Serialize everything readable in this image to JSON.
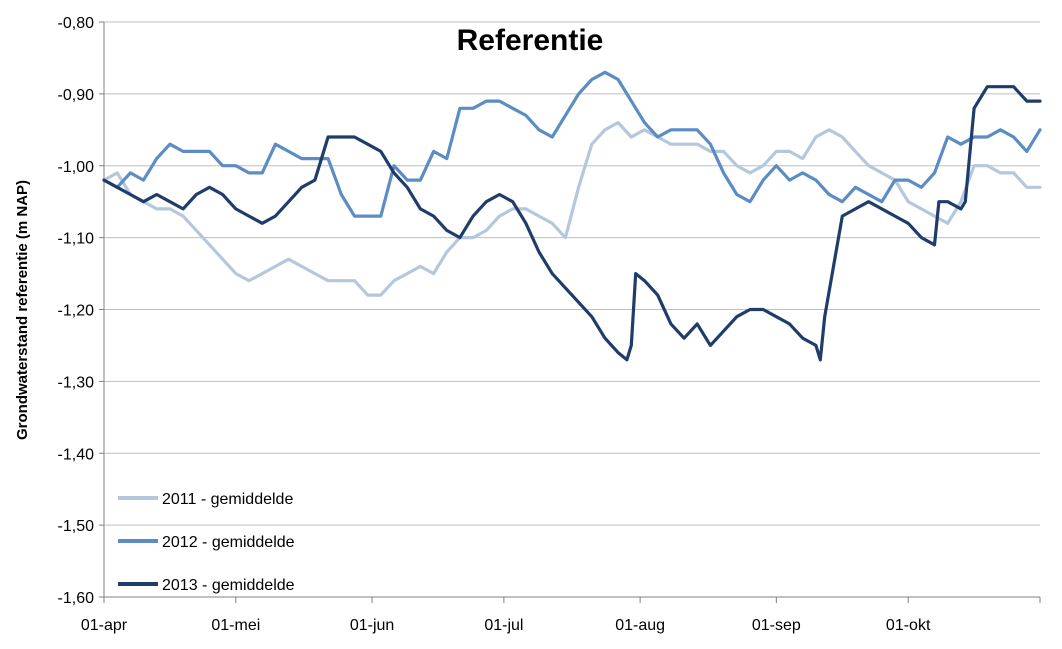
{
  "chart_data": {
    "type": "line",
    "title": "Referentie",
    "ylabel": "Grondwaterstand referentie (m NAP)",
    "xlabel": "",
    "ylim": [
      -1.6,
      -0.8
    ],
    "yticks": [
      "-0,80",
      "-0,90",
      "-1,00",
      "-1,10",
      "-1,20",
      "-1,30",
      "-1,40",
      "-1,50",
      "-1,60"
    ],
    "xlim": [
      0,
      213
    ],
    "xticks": [
      {
        "label": "01-apr",
        "day": 0
      },
      {
        "label": "01-mei",
        "day": 30
      },
      {
        "label": "01-jun",
        "day": 61
      },
      {
        "label": "01-jul",
        "day": 91
      },
      {
        "label": "01-aug",
        "day": 122
      },
      {
        "label": "01-sep",
        "day": 153
      },
      {
        "label": "01-okt",
        "day": 183
      }
    ],
    "grid": true,
    "legend_position": "bottom-left",
    "series": [
      {
        "name": "2011 - gemiddelde",
        "color": "#b4c7dc",
        "points": [
          [
            0,
            -1.02
          ],
          [
            3,
            -1.01
          ],
          [
            6,
            -1.04
          ],
          [
            9,
            -1.05
          ],
          [
            12,
            -1.06
          ],
          [
            15,
            -1.06
          ],
          [
            18,
            -1.07
          ],
          [
            21,
            -1.09
          ],
          [
            24,
            -1.11
          ],
          [
            27,
            -1.13
          ],
          [
            30,
            -1.15
          ],
          [
            33,
            -1.16
          ],
          [
            36,
            -1.15
          ],
          [
            39,
            -1.14
          ],
          [
            42,
            -1.13
          ],
          [
            45,
            -1.14
          ],
          [
            48,
            -1.15
          ],
          [
            51,
            -1.16
          ],
          [
            54,
            -1.16
          ],
          [
            57,
            -1.16
          ],
          [
            60,
            -1.18
          ],
          [
            63,
            -1.18
          ],
          [
            66,
            -1.16
          ],
          [
            69,
            -1.15
          ],
          [
            72,
            -1.14
          ],
          [
            75,
            -1.15
          ],
          [
            78,
            -1.12
          ],
          [
            81,
            -1.1
          ],
          [
            84,
            -1.1
          ],
          [
            87,
            -1.09
          ],
          [
            90,
            -1.07
          ],
          [
            93,
            -1.06
          ],
          [
            96,
            -1.06
          ],
          [
            99,
            -1.07
          ],
          [
            102,
            -1.08
          ],
          [
            105,
            -1.1
          ],
          [
            108,
            -1.03
          ],
          [
            111,
            -0.97
          ],
          [
            114,
            -0.95
          ],
          [
            117,
            -0.94
          ],
          [
            120,
            -0.96
          ],
          [
            123,
            -0.95
          ],
          [
            126,
            -0.96
          ],
          [
            129,
            -0.97
          ],
          [
            132,
            -0.97
          ],
          [
            135,
            -0.97
          ],
          [
            138,
            -0.98
          ],
          [
            141,
            -0.98
          ],
          [
            144,
            -1.0
          ],
          [
            147,
            -1.01
          ],
          [
            150,
            -1.0
          ],
          [
            153,
            -0.98
          ],
          [
            156,
            -0.98
          ],
          [
            159,
            -0.99
          ],
          [
            162,
            -0.96
          ],
          [
            165,
            -0.95
          ],
          [
            168,
            -0.96
          ],
          [
            171,
            -0.98
          ],
          [
            174,
            -1.0
          ],
          [
            177,
            -1.01
          ],
          [
            180,
            -1.02
          ],
          [
            183,
            -1.05
          ],
          [
            186,
            -1.06
          ],
          [
            189,
            -1.07
          ],
          [
            192,
            -1.08
          ],
          [
            195,
            -1.05
          ],
          [
            198,
            -1.0
          ],
          [
            201,
            -1.0
          ],
          [
            204,
            -1.01
          ],
          [
            207,
            -1.01
          ],
          [
            210,
            -1.03
          ],
          [
            213,
            -1.03
          ]
        ]
      },
      {
        "name": "2012 - gemiddelde",
        "color": "#5b8cc4",
        "points": [
          [
            0,
            -1.02
          ],
          [
            3,
            -1.03
          ],
          [
            6,
            -1.01
          ],
          [
            9,
            -1.02
          ],
          [
            12,
            -0.99
          ],
          [
            15,
            -0.97
          ],
          [
            18,
            -0.98
          ],
          [
            21,
            -0.98
          ],
          [
            24,
            -0.98
          ],
          [
            27,
            -1.0
          ],
          [
            30,
            -1.0
          ],
          [
            33,
            -1.01
          ],
          [
            36,
            -1.01
          ],
          [
            39,
            -0.97
          ],
          [
            42,
            -0.98
          ],
          [
            45,
            -0.99
          ],
          [
            48,
            -0.99
          ],
          [
            51,
            -0.99
          ],
          [
            54,
            -1.04
          ],
          [
            57,
            -1.07
          ],
          [
            60,
            -1.07
          ],
          [
            63,
            -1.07
          ],
          [
            66,
            -1.0
          ],
          [
            69,
            -1.02
          ],
          [
            72,
            -1.02
          ],
          [
            75,
            -0.98
          ],
          [
            78,
            -0.99
          ],
          [
            81,
            -0.92
          ],
          [
            84,
            -0.92
          ],
          [
            87,
            -0.91
          ],
          [
            90,
            -0.91
          ],
          [
            93,
            -0.92
          ],
          [
            96,
            -0.93
          ],
          [
            99,
            -0.95
          ],
          [
            102,
            -0.96
          ],
          [
            105,
            -0.93
          ],
          [
            108,
            -0.9
          ],
          [
            111,
            -0.88
          ],
          [
            114,
            -0.87
          ],
          [
            117,
            -0.88
          ],
          [
            120,
            -0.91
          ],
          [
            123,
            -0.94
          ],
          [
            126,
            -0.96
          ],
          [
            129,
            -0.95
          ],
          [
            132,
            -0.95
          ],
          [
            135,
            -0.95
          ],
          [
            138,
            -0.97
          ],
          [
            141,
            -1.01
          ],
          [
            144,
            -1.04
          ],
          [
            147,
            -1.05
          ],
          [
            150,
            -1.02
          ],
          [
            153,
            -1.0
          ],
          [
            156,
            -1.02
          ],
          [
            159,
            -1.01
          ],
          [
            162,
            -1.02
          ],
          [
            165,
            -1.04
          ],
          [
            168,
            -1.05
          ],
          [
            171,
            -1.03
          ],
          [
            174,
            -1.04
          ],
          [
            177,
            -1.05
          ],
          [
            180,
            -1.02
          ],
          [
            183,
            -1.02
          ],
          [
            186,
            -1.03
          ],
          [
            189,
            -1.01
          ],
          [
            192,
            -0.96
          ],
          [
            195,
            -0.97
          ],
          [
            198,
            -0.96
          ],
          [
            201,
            -0.96
          ],
          [
            204,
            -0.95
          ],
          [
            207,
            -0.96
          ],
          [
            210,
            -0.98
          ],
          [
            213,
            -0.95
          ]
        ]
      },
      {
        "name": "2013 - gemiddelde",
        "color": "#1f3d6b",
        "points": [
          [
            0,
            -1.02
          ],
          [
            3,
            -1.03
          ],
          [
            6,
            -1.04
          ],
          [
            9,
            -1.05
          ],
          [
            12,
            -1.04
          ],
          [
            15,
            -1.05
          ],
          [
            18,
            -1.06
          ],
          [
            21,
            -1.04
          ],
          [
            24,
            -1.03
          ],
          [
            27,
            -1.04
          ],
          [
            30,
            -1.06
          ],
          [
            33,
            -1.07
          ],
          [
            36,
            -1.08
          ],
          [
            39,
            -1.07
          ],
          [
            42,
            -1.05
          ],
          [
            45,
            -1.03
          ],
          [
            48,
            -1.02
          ],
          [
            51,
            -0.96
          ],
          [
            54,
            -0.96
          ],
          [
            57,
            -0.96
          ],
          [
            60,
            -0.97
          ],
          [
            63,
            -0.98
          ],
          [
            66,
            -1.01
          ],
          [
            69,
            -1.03
          ],
          [
            72,
            -1.06
          ],
          [
            75,
            -1.07
          ],
          [
            78,
            -1.09
          ],
          [
            81,
            -1.1
          ],
          [
            84,
            -1.07
          ],
          [
            87,
            -1.05
          ],
          [
            90,
            -1.04
          ],
          [
            93,
            -1.05
          ],
          [
            96,
            -1.08
          ],
          [
            99,
            -1.12
          ],
          [
            102,
            -1.15
          ],
          [
            105,
            -1.17
          ],
          [
            108,
            -1.19
          ],
          [
            111,
            -1.21
          ],
          [
            114,
            -1.24
          ],
          [
            117,
            -1.26
          ],
          [
            119,
            -1.27
          ],
          [
            120,
            -1.25
          ],
          [
            121,
            -1.15
          ],
          [
            123,
            -1.16
          ],
          [
            126,
            -1.18
          ],
          [
            129,
            -1.22
          ],
          [
            132,
            -1.24
          ],
          [
            135,
            -1.22
          ],
          [
            138,
            -1.25
          ],
          [
            141,
            -1.23
          ],
          [
            144,
            -1.21
          ],
          [
            147,
            -1.2
          ],
          [
            150,
            -1.2
          ],
          [
            153,
            -1.21
          ],
          [
            156,
            -1.22
          ],
          [
            159,
            -1.24
          ],
          [
            162,
            -1.25
          ],
          [
            163,
            -1.27
          ],
          [
            164,
            -1.21
          ],
          [
            166,
            -1.14
          ],
          [
            168,
            -1.07
          ],
          [
            171,
            -1.06
          ],
          [
            174,
            -1.05
          ],
          [
            177,
            -1.06
          ],
          [
            180,
            -1.07
          ],
          [
            183,
            -1.08
          ],
          [
            186,
            -1.1
          ],
          [
            189,
            -1.11
          ],
          [
            190,
            -1.05
          ],
          [
            192,
            -1.05
          ],
          [
            195,
            -1.06
          ],
          [
            196,
            -1.05
          ],
          [
            198,
            -0.92
          ],
          [
            201,
            -0.89
          ],
          [
            204,
            -0.89
          ],
          [
            207,
            -0.89
          ],
          [
            210,
            -0.91
          ],
          [
            213,
            -0.91
          ]
        ]
      }
    ]
  }
}
